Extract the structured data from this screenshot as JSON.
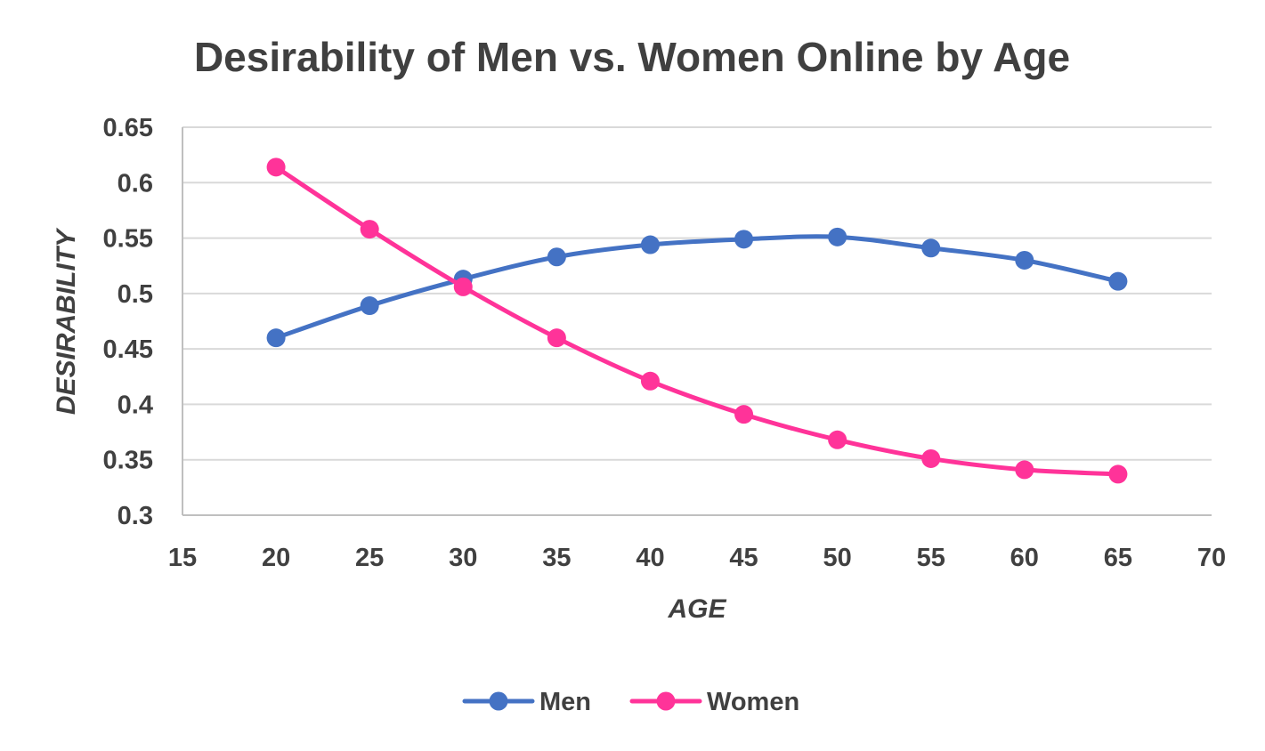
{
  "chart_data": {
    "type": "line",
    "title": "Desirability of Men vs. Women Online by Age",
    "xlabel": "AGE",
    "ylabel": "DESIRABILITY",
    "xlim": [
      15,
      70
    ],
    "ylim": [
      0.3,
      0.65
    ],
    "x_ticks": [
      15,
      20,
      25,
      30,
      35,
      40,
      45,
      50,
      55,
      60,
      65,
      70
    ],
    "x_tick_labels": [
      "15",
      "20",
      "25",
      "30",
      "35",
      "40",
      "45",
      "50",
      "55",
      "60",
      "65",
      "70"
    ],
    "y_ticks": [
      0.3,
      0.35,
      0.4,
      0.45,
      0.5,
      0.55,
      0.6,
      0.65
    ],
    "y_tick_labels": [
      "0.3",
      "0.35",
      "0.4",
      "0.45",
      "0.5",
      "0.55",
      "0.6",
      "0.65"
    ],
    "grid": true,
    "smooth": true,
    "legend_position": "bottom",
    "x": [
      20,
      25,
      30,
      35,
      40,
      45,
      50,
      55,
      60,
      65
    ],
    "series": [
      {
        "name": "Men",
        "color": "#4472c4",
        "values": [
          0.46,
          0.489,
          0.513,
          0.533,
          0.544,
          0.549,
          0.551,
          0.541,
          0.53,
          0.511
        ]
      },
      {
        "name": "Women",
        "color": "#ff3399",
        "values": [
          0.614,
          0.558,
          0.506,
          0.46,
          0.421,
          0.391,
          0.368,
          0.351,
          0.341,
          0.337
        ]
      }
    ]
  }
}
